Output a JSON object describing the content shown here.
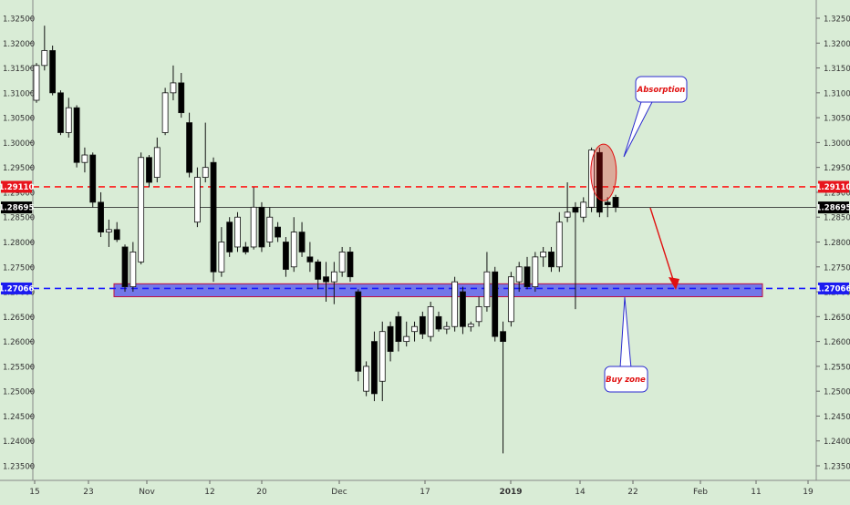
{
  "chart_data": {
    "type": "candlestick",
    "pair_scale": "price",
    "ylim": [
      1.2325,
      1.3275
    ],
    "y_ticks": [
      "1.32500",
      "1.32000",
      "1.31500",
      "1.31000",
      "1.30500",
      "1.30000",
      "1.29500",
      "1.29000",
      "1.28500",
      "1.28000",
      "1.27500",
      "1.27000",
      "1.26500",
      "1.26000",
      "1.25500",
      "1.25000",
      "1.24500",
      "1.24000",
      "1.23500"
    ],
    "x_ticks": [
      "15",
      "23",
      "Nov",
      "12",
      "20",
      "Dec",
      "17",
      "2019",
      "14",
      "22",
      "Feb",
      "11",
      "19"
    ],
    "grid": false,
    "candles": [
      {
        "o": 1.3085,
        "h": 1.316,
        "l": 1.308,
        "c": 1.3155
      },
      {
        "o": 1.3155,
        "h": 1.3235,
        "l": 1.3145,
        "c": 1.3185
      },
      {
        "o": 1.3185,
        "h": 1.3195,
        "l": 1.3095,
        "c": 1.31
      },
      {
        "o": 1.31,
        "h": 1.3105,
        "l": 1.3015,
        "c": 1.302
      },
      {
        "o": 1.302,
        "h": 1.309,
        "l": 1.301,
        "c": 1.307
      },
      {
        "o": 1.307,
        "h": 1.3075,
        "l": 1.295,
        "c": 1.296
      },
      {
        "o": 1.296,
        "h": 1.299,
        "l": 1.294,
        "c": 1.2975
      },
      {
        "o": 1.2975,
        "h": 1.298,
        "l": 1.287,
        "c": 1.288
      },
      {
        "o": 1.288,
        "h": 1.29,
        "l": 1.281,
        "c": 1.282
      },
      {
        "o": 1.282,
        "h": 1.2845,
        "l": 1.279,
        "c": 1.2825
      },
      {
        "o": 1.2825,
        "h": 1.284,
        "l": 1.28,
        "c": 1.2805
      },
      {
        "o": 1.279,
        "h": 1.2795,
        "l": 1.27,
        "c": 1.271
      },
      {
        "o": 1.271,
        "h": 1.28,
        "l": 1.27,
        "c": 1.278
      },
      {
        "o": 1.276,
        "h": 1.298,
        "l": 1.2755,
        "c": 1.297
      },
      {
        "o": 1.297,
        "h": 1.2975,
        "l": 1.291,
        "c": 1.292
      },
      {
        "o": 1.293,
        "h": 1.301,
        "l": 1.292,
        "c": 1.299
      },
      {
        "o": 1.302,
        "h": 1.311,
        "l": 1.3015,
        "c": 1.31
      },
      {
        "o": 1.31,
        "h": 1.3155,
        "l": 1.3085,
        "c": 1.312
      },
      {
        "o": 1.312,
        "h": 1.314,
        "l": 1.305,
        "c": 1.306
      },
      {
        "o": 1.304,
        "h": 1.306,
        "l": 1.293,
        "c": 1.294
      },
      {
        "o": 1.284,
        "h": 1.295,
        "l": 1.283,
        "c": 1.293
      },
      {
        "o": 1.293,
        "h": 1.304,
        "l": 1.292,
        "c": 1.295
      },
      {
        "o": 1.296,
        "h": 1.297,
        "l": 1.272,
        "c": 1.274
      },
      {
        "o": 1.274,
        "h": 1.283,
        "l": 1.273,
        "c": 1.28
      },
      {
        "o": 1.284,
        "h": 1.285,
        "l": 1.277,
        "c": 1.278
      },
      {
        "o": 1.279,
        "h": 1.286,
        "l": 1.278,
        "c": 1.285
      },
      {
        "o": 1.279,
        "h": 1.28,
        "l": 1.2775,
        "c": 1.278
      },
      {
        "o": 1.279,
        "h": 1.291,
        "l": 1.2785,
        "c": 1.287
      },
      {
        "o": 1.287,
        "h": 1.288,
        "l": 1.278,
        "c": 1.279
      },
      {
        "o": 1.28,
        "h": 1.287,
        "l": 1.279,
        "c": 1.285
      },
      {
        "o": 1.283,
        "h": 1.284,
        "l": 1.28,
        "c": 1.281
      },
      {
        "o": 1.28,
        "h": 1.281,
        "l": 1.273,
        "c": 1.2745
      },
      {
        "o": 1.275,
        "h": 1.285,
        "l": 1.274,
        "c": 1.282
      },
      {
        "o": 1.282,
        "h": 1.284,
        "l": 1.277,
        "c": 1.278
      },
      {
        "o": 1.277,
        "h": 1.28,
        "l": 1.274,
        "c": 1.276
      },
      {
        "o": 1.276,
        "h": 1.2765,
        "l": 1.2705,
        "c": 1.2725
      },
      {
        "o": 1.273,
        "h": 1.276,
        "l": 1.268,
        "c": 1.272
      },
      {
        "o": 1.272,
        "h": 1.276,
        "l": 1.2675,
        "c": 1.274
      },
      {
        "o": 1.274,
        "h": 1.279,
        "l": 1.273,
        "c": 1.278
      },
      {
        "o": 1.278,
        "h": 1.279,
        "l": 1.272,
        "c": 1.273
      },
      {
        "o": 1.27,
        "h": 1.2705,
        "l": 1.252,
        "c": 1.254
      },
      {
        "o": 1.25,
        "h": 1.256,
        "l": 1.249,
        "c": 1.255
      },
      {
        "o": 1.26,
        "h": 1.262,
        "l": 1.248,
        "c": 1.2495
      },
      {
        "o": 1.252,
        "h": 1.264,
        "l": 1.248,
        "c": 1.262
      },
      {
        "o": 1.263,
        "h": 1.264,
        "l": 1.256,
        "c": 1.258
      },
      {
        "o": 1.265,
        "h": 1.266,
        "l": 1.258,
        "c": 1.26
      },
      {
        "o": 1.26,
        "h": 1.264,
        "l": 1.259,
        "c": 1.261
      },
      {
        "o": 1.262,
        "h": 1.264,
        "l": 1.26,
        "c": 1.263
      },
      {
        "o": 1.265,
        "h": 1.266,
        "l": 1.2605,
        "c": 1.2615
      },
      {
        "o": 1.261,
        "h": 1.268,
        "l": 1.26,
        "c": 1.267
      },
      {
        "o": 1.265,
        "h": 1.266,
        "l": 1.262,
        "c": 1.2625
      },
      {
        "o": 1.2625,
        "h": 1.264,
        "l": 1.2615,
        "c": 1.263
      },
      {
        "o": 1.263,
        "h": 1.273,
        "l": 1.262,
        "c": 1.272
      },
      {
        "o": 1.27,
        "h": 1.271,
        "l": 1.2615,
        "c": 1.263
      },
      {
        "o": 1.263,
        "h": 1.264,
        "l": 1.262,
        "c": 1.2635
      },
      {
        "o": 1.264,
        "h": 1.269,
        "l": 1.263,
        "c": 1.267
      },
      {
        "o": 1.267,
        "h": 1.278,
        "l": 1.266,
        "c": 1.274
      },
      {
        "o": 1.274,
        "h": 1.275,
        "l": 1.26,
        "c": 1.261
      },
      {
        "o": 1.262,
        "h": 1.264,
        "l": 1.2375,
        "c": 1.26
      },
      {
        "o": 1.264,
        "h": 1.274,
        "l": 1.263,
        "c": 1.273
      },
      {
        "o": 1.272,
        "h": 1.276,
        "l": 1.27,
        "c": 1.275
      },
      {
        "o": 1.275,
        "h": 1.277,
        "l": 1.2705,
        "c": 1.271
      },
      {
        "o": 1.271,
        "h": 1.278,
        "l": 1.27,
        "c": 1.277
      },
      {
        "o": 1.277,
        "h": 1.279,
        "l": 1.275,
        "c": 1.278
      },
      {
        "o": 1.278,
        "h": 1.279,
        "l": 1.274,
        "c": 1.275
      },
      {
        "o": 1.275,
        "h": 1.286,
        "l": 1.274,
        "c": 1.284
      },
      {
        "o": 1.285,
        "h": 1.292,
        "l": 1.284,
        "c": 1.286
      },
      {
        "o": 1.287,
        "h": 1.288,
        "l": 1.2665,
        "c": 1.286
      },
      {
        "o": 1.285,
        "h": 1.289,
        "l": 1.284,
        "c": 1.288
      },
      {
        "o": 1.287,
        "h": 1.299,
        "l": 1.286,
        "c": 1.2985
      },
      {
        "o": 1.298,
        "h": 1.299,
        "l": 1.285,
        "c": 1.286
      },
      {
        "o": 1.288,
        "h": 1.289,
        "l": 1.285,
        "c": 1.2875
      },
      {
        "o": 1.289,
        "h": 1.2895,
        "l": 1.286,
        "c": 1.287
      }
    ],
    "price_labels": [
      {
        "text": "1.29110",
        "value": 1.2911,
        "color": "#e8141c"
      },
      {
        "text": "1.28695",
        "value": 1.28695,
        "color": "#000000"
      },
      {
        "text": "1.27066",
        "value": 1.27066,
        "color": "#1b1bf0"
      }
    ],
    "annotations": {
      "absorption": "Absorption",
      "buy_zone": "Buy zone"
    },
    "colors": {
      "background": "#d9ecd6",
      "bull_body": "#ffffff",
      "bear_body": "#000000",
      "resistance_line": "#ff1a1a",
      "support_line": "#1a1aff",
      "zone_fill": "#5050ee",
      "zone_border": "#c01040",
      "arrow": "#e01010",
      "callout_text": "#e01010"
    }
  }
}
